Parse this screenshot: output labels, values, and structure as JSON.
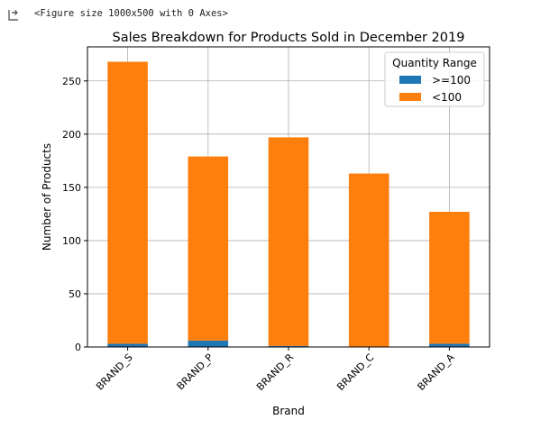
{
  "output": {
    "icon": "output-arrow-icon",
    "text": "<Figure size 1000x500 with 0 Axes>"
  },
  "chart_data": {
    "type": "bar",
    "stacked": true,
    "title": "Sales Breakdown for Products Sold in December 2019",
    "xlabel": "Brand",
    "ylabel": "Number of Products",
    "categories": [
      "BRAND_S",
      "BRAND_P",
      "BRAND_R",
      "BRAND_C",
      "BRAND_A"
    ],
    "series": [
      {
        "name": ">=100",
        "color": "#1f77b4",
        "values": [
          3,
          6,
          1,
          0,
          3
        ]
      },
      {
        "name": "<100",
        "color": "#ff7f0e",
        "values": [
          265,
          173,
          196,
          163,
          124
        ]
      }
    ],
    "ylim": [
      0,
      282
    ],
    "yticks": [
      0,
      50,
      100,
      150,
      200,
      250
    ],
    "grid": true,
    "legend": {
      "title": "Quantity Range",
      "placement": "upper right"
    }
  }
}
